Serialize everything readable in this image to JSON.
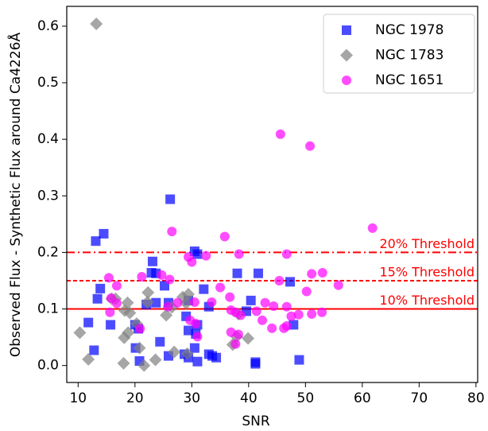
{
  "chart_data": {
    "type": "scatter",
    "xlabel": "SNR",
    "ylabel": "Observed Flux - Synthetic Flux around Ca4226Å",
    "xlim": [
      8,
      80.3
    ],
    "ylim": [
      -0.03,
      0.635
    ],
    "xticks": [
      10,
      20,
      30,
      40,
      50,
      60,
      70,
      80
    ],
    "yticks": [
      {
        "value": 0,
        "label": "0.0"
      },
      0.1,
      0.2,
      0.3,
      0.4,
      0.5,
      0.6
    ],
    "legend": "upper right",
    "thresholds": [
      {
        "value": 0.2,
        "label": "20% Threshold",
        "style": "dashdot",
        "color": "#ff0000"
      },
      {
        "value": 0.15,
        "label": "15% Threshold",
        "style": "dashed",
        "color": "#ff0000"
      },
      {
        "value": 0.1,
        "label": "10% Threshold",
        "style": "solid",
        "color": "#ff0000"
      }
    ],
    "series": [
      {
        "name": "NGC 1978",
        "color": "#0000ff",
        "marker": "square",
        "x": [
          13.1,
          14.5,
          13.4,
          26.2,
          23.1,
          22.9,
          23.7,
          30.5,
          31,
          41.7,
          38,
          47.3,
          25.2,
          32.1,
          13.9,
          22,
          23.7,
          25.9,
          29.4,
          33,
          40.4,
          39.6,
          41.2,
          41.2,
          47.9,
          48.9,
          11.8,
          15.7,
          20,
          20.6,
          24.4,
          29,
          29.4,
          31,
          30.7,
          12.8,
          20.1,
          20.8,
          25.9,
          28.7,
          29.4,
          30.5,
          31,
          33,
          33.6,
          34.3
        ],
        "values": [
          0.22,
          0.233,
          0.118,
          0.294,
          0.184,
          0.164,
          0.163,
          0.202,
          0.197,
          0.163,
          0.163,
          0.148,
          0.141,
          0.135,
          0.136,
          0.108,
          0.111,
          0.111,
          0.115,
          0.104,
          0.115,
          0.096,
          0.006,
          0.003,
          0.072,
          0.01,
          0.076,
          0.072,
          0.072,
          0.065,
          0.042,
          0.087,
          0.062,
          0.072,
          0.056,
          0.027,
          0.031,
          0.008,
          0.017,
          0.02,
          0.014,
          0.031,
          0.007,
          0.02,
          0.017,
          0.014
        ]
      },
      {
        "name": "NGC 1783",
        "color": "#808080",
        "marker": "diamond",
        "x": [
          13.2,
          10.3,
          11.8,
          15.9,
          16.6,
          18.2,
          18.7,
          19.1,
          18.1,
          18.8,
          18,
          20.8,
          21.6,
          22.3,
          22.2,
          23.6,
          25.5,
          26.5,
          26.9,
          28.4,
          29.4,
          29,
          29.2,
          37.2,
          37.9,
          39.9,
          38.2,
          20.3
        ],
        "values": [
          0.604,
          0.058,
          0.011,
          0.118,
          0.118,
          0.097,
          0.111,
          0.093,
          0.049,
          0.058,
          0.004,
          0.031,
          0.0,
          0.129,
          0.112,
          0.01,
          0.089,
          0.103,
          0.024,
          0.121,
          0.126,
          0.11,
          0.021,
          0.037,
          0.051,
          0.048,
          0.091,
          0.074
        ]
      },
      {
        "name": "NGC 1651",
        "color": "#ff00ff",
        "marker": "circle",
        "x": [
          45.6,
          50.8,
          61.8,
          26.5,
          35.8,
          29.4,
          32.5,
          38.3,
          46.7,
          15.4,
          16.8,
          21.2,
          26.1,
          24.7,
          30,
          45.4,
          51.1,
          53,
          55.8,
          50.2,
          15.8,
          16.8,
          15.6,
          20.9,
          25.8,
          27.5,
          30.5,
          33.5,
          35,
          36.7,
          36.9,
          37.7,
          36.9,
          38.2,
          37.7,
          42.4,
          42.9,
          44.4,
          46.7,
          46.7,
          47.5,
          51.1,
          52.9,
          48.8,
          29.7,
          31,
          41.4,
          44.1,
          46.2,
          38.6,
          30.7
        ],
        "values": [
          0.409,
          0.388,
          0.243,
          0.237,
          0.228,
          0.192,
          0.194,
          0.197,
          0.197,
          0.155,
          0.141,
          0.157,
          0.152,
          0.16,
          0.183,
          0.15,
          0.162,
          0.164,
          0.142,
          0.131,
          0.119,
          0.11,
          0.094,
          0.065,
          0.104,
          0.111,
          0.112,
          0.112,
          0.138,
          0.121,
          0.098,
          0.094,
          0.059,
          0.055,
          0.038,
          0.08,
          0.111,
          0.105,
          0.104,
          0.07,
          0.087,
          0.091,
          0.094,
          0.09,
          0.08,
          0.051,
          0.096,
          0.066,
          0.066,
          0.089,
          0.074
        ]
      }
    ]
  }
}
